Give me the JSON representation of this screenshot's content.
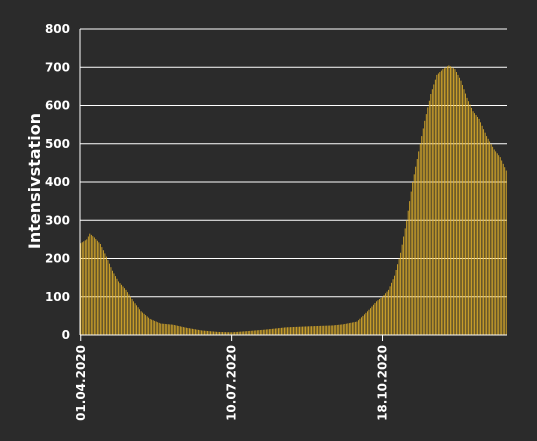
{
  "chart_data": {
    "type": "bar",
    "ylabel": "Intensivstation",
    "xlabel": "",
    "ylim": [
      0,
      800
    ],
    "yticks": [
      0,
      100,
      200,
      300,
      400,
      500,
      600,
      700,
      800
    ],
    "grid": true,
    "x_tick_labels": [
      "01.04.2020",
      "10.07.2020",
      "18.10.2020"
    ],
    "x_start": "2020-04-01",
    "x_end": "2021-01-08",
    "colors": {
      "background": "#2b2b2b",
      "bar": "#e5b32a",
      "grid": "#ffffff",
      "text": "#ffffff"
    },
    "keypoints": [
      [
        "2020-04-01",
        240
      ],
      [
        "2020-04-05",
        250
      ],
      [
        "2020-04-07",
        265
      ],
      [
        "2020-04-10",
        255
      ],
      [
        "2020-04-14",
        238
      ],
      [
        "2020-04-18",
        205
      ],
      [
        "2020-04-22",
        168
      ],
      [
        "2020-04-26",
        140
      ],
      [
        "2020-05-01",
        118
      ],
      [
        "2020-05-06",
        88
      ],
      [
        "2020-05-11",
        62
      ],
      [
        "2020-05-17",
        42
      ],
      [
        "2020-05-24",
        30
      ],
      [
        "2020-06-01",
        27
      ],
      [
        "2020-06-10",
        19
      ],
      [
        "2020-06-20",
        12
      ],
      [
        "2020-07-01",
        8
      ],
      [
        "2020-07-10",
        7
      ],
      [
        "2020-07-20",
        10
      ],
      [
        "2020-08-01",
        14
      ],
      [
        "2020-08-15",
        20
      ],
      [
        "2020-09-01",
        23
      ],
      [
        "2020-09-15",
        25
      ],
      [
        "2020-09-22",
        28
      ],
      [
        "2020-10-01",
        35
      ],
      [
        "2020-10-05",
        50
      ],
      [
        "2020-10-10",
        70
      ],
      [
        "2020-10-14",
        88
      ],
      [
        "2020-10-18",
        100
      ],
      [
        "2020-10-22",
        118
      ],
      [
        "2020-10-26",
        155
      ],
      [
        "2020-10-30",
        215
      ],
      [
        "2020-11-03",
        300
      ],
      [
        "2020-11-07",
        400
      ],
      [
        "2020-11-11",
        480
      ],
      [
        "2020-11-15",
        560
      ],
      [
        "2020-11-19",
        630
      ],
      [
        "2020-11-23",
        680
      ],
      [
        "2020-11-27",
        695
      ],
      [
        "2020-12-01",
        705
      ],
      [
        "2020-12-05",
        695
      ],
      [
        "2020-12-09",
        665
      ],
      [
        "2020-12-13",
        620
      ],
      [
        "2020-12-17",
        585
      ],
      [
        "2020-12-21",
        565
      ],
      [
        "2020-12-26",
        520
      ],
      [
        "2020-12-31",
        485
      ],
      [
        "2021-01-04",
        465
      ],
      [
        "2021-01-08",
        430
      ]
    ]
  }
}
